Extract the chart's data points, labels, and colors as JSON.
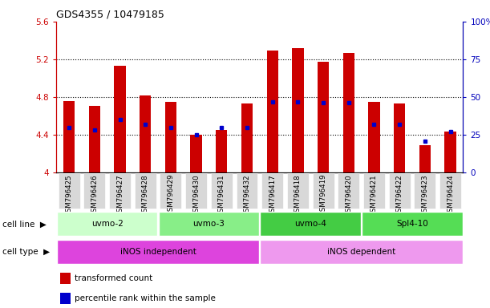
{
  "title": "GDS4355 / 10479185",
  "samples": [
    "GSM796425",
    "GSM796426",
    "GSM796427",
    "GSM796428",
    "GSM796429",
    "GSM796430",
    "GSM796431",
    "GSM796432",
    "GSM796417",
    "GSM796418",
    "GSM796419",
    "GSM796420",
    "GSM796421",
    "GSM796422",
    "GSM796423",
    "GSM796424"
  ],
  "transformed_count": [
    4.76,
    4.71,
    5.13,
    4.82,
    4.75,
    4.4,
    4.45,
    4.73,
    5.29,
    5.32,
    5.17,
    5.27,
    4.75,
    4.73,
    4.29,
    4.43
  ],
  "percentile_rank": [
    30,
    28,
    35,
    32,
    30,
    25,
    30,
    30,
    47,
    47,
    46,
    46,
    32,
    32,
    21,
    27
  ],
  "ylim_left": [
    4.0,
    5.6
  ],
  "ylim_right": [
    0,
    100
  ],
  "yticks_left": [
    4.0,
    4.4,
    4.8,
    5.2,
    5.6
  ],
  "ytick_labels_left": [
    "4",
    "4.4",
    "4.8",
    "5.2",
    "5.6"
  ],
  "yticks_right": [
    0,
    25,
    50,
    75,
    100
  ],
  "ytick_labels_right": [
    "0",
    "25",
    "50",
    "75",
    "100%"
  ],
  "hlines": [
    4.4,
    4.8,
    5.2
  ],
  "bar_color": "#cc0000",
  "dot_color": "#0000cc",
  "bar_bottom": 4.0,
  "cell_line_groups": [
    {
      "label": "uvmo-2",
      "start": 0,
      "end": 3,
      "color": "#ccffcc"
    },
    {
      "label": "uvmo-3",
      "start": 4,
      "end": 7,
      "color": "#88ee88"
    },
    {
      "label": "uvmo-4",
      "start": 8,
      "end": 11,
      "color": "#44cc44"
    },
    {
      "label": "Spl4-10",
      "start": 12,
      "end": 15,
      "color": "#55dd55"
    }
  ],
  "cell_type_groups": [
    {
      "label": "iNOS independent",
      "start": 0,
      "end": 7,
      "color": "#dd44dd"
    },
    {
      "label": "iNOS dependent",
      "start": 8,
      "end": 15,
      "color": "#ee99ee"
    }
  ],
  "legend_items": [
    {
      "label": "transformed count",
      "color": "#cc0000"
    },
    {
      "label": "percentile rank within the sample",
      "color": "#0000cc"
    }
  ],
  "left_tick_color": "#cc0000",
  "right_tick_color": "#0000bb",
  "tick_label_bg": "#d8d8d8"
}
